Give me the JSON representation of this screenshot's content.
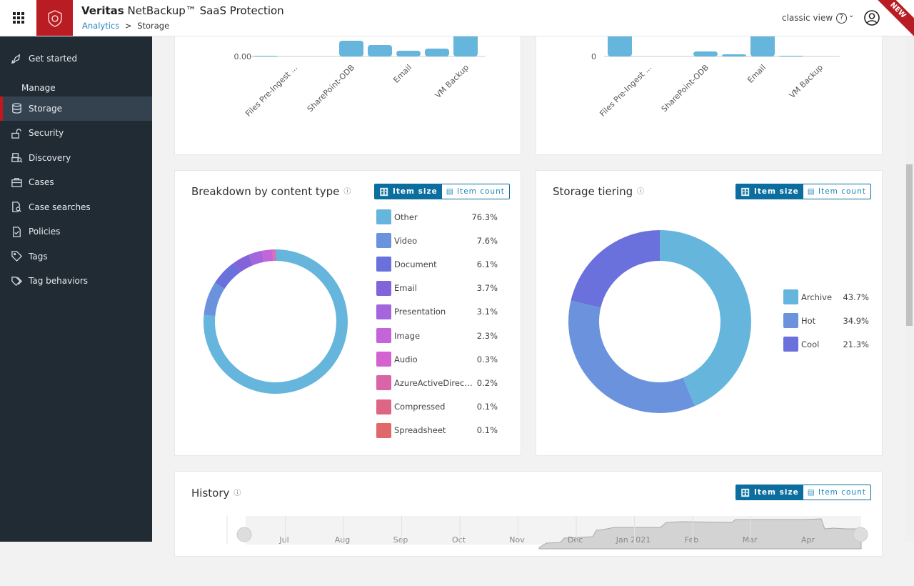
{
  "header": {
    "product_brand": "Veritas",
    "product_name": "NetBackup™ SaaS Protection",
    "breadcrumb": [
      "Analytics",
      "Storage"
    ],
    "classic_view": "classic view",
    "new_badge": "NEW",
    "icons": [
      "app-grid-icon",
      "shield-logo-icon",
      "help-icon",
      "chevron-down-icon",
      "user-icon"
    ]
  },
  "sidebar": {
    "top": {
      "label": "Get started",
      "icon": "rocket-icon"
    },
    "section": "Manage",
    "items": [
      {
        "label": "Storage",
        "icon": "database-icon",
        "active": true
      },
      {
        "label": "Security",
        "icon": "unlock-icon"
      },
      {
        "label": "Discovery",
        "icon": "discovery-icon"
      },
      {
        "label": "Cases",
        "icon": "briefcase-icon"
      },
      {
        "label": "Case searches",
        "icon": "file-search-icon"
      },
      {
        "label": "Policies",
        "icon": "file-check-icon"
      },
      {
        "label": "Tags",
        "icon": "tag-icon"
      },
      {
        "label": "Tag behaviors",
        "icon": "tags-icon"
      }
    ]
  },
  "toggle": {
    "size": "Item size",
    "count": "Item count"
  },
  "colors": {
    "accent": "#0b6e9e",
    "brand_red": "#b91c22",
    "bar": "#65b5dc"
  },
  "chart_data": [
    {
      "type": "bar",
      "ytick": "0.00",
      "categories": [
        "",
        "Files Pre-Ingest ...",
        "",
        "SharePoint-ODB",
        "",
        "Email",
        "",
        "VM Backup"
      ],
      "values": [
        0.3,
        0,
        0,
        22,
        16,
        8,
        11,
        40
      ]
    },
    {
      "type": "bar",
      "ytick": "0",
      "categories": [
        "",
        "Files Pre-Ingest ...",
        "",
        "SharePoint-ODB",
        "",
        "Email",
        "",
        "VM Backup"
      ],
      "values": [
        40,
        0,
        0,
        7,
        3,
        40,
        1,
        0
      ]
    },
    {
      "type": "pie",
      "title": "Breakdown by content type",
      "donut": true,
      "legend": "right",
      "labels": [
        "Other",
        "Video",
        "Document",
        "Email",
        "Presentation",
        "Image",
        "Audio",
        "AzureActiveDirec…",
        "Compressed",
        "Spreadsheet"
      ],
      "values": [
        76.3,
        7.6,
        6.1,
        3.7,
        3.1,
        2.3,
        0.3,
        0.2,
        0.1,
        0.1
      ],
      "display": [
        "76.3%",
        "7.6%",
        "6.1%",
        "3.7%",
        "3.1%",
        "2.3%",
        "0.3%",
        "0.2%",
        "0.1%",
        "0.1%"
      ],
      "colors": [
        "#65b5dc",
        "#6b93dd",
        "#6a70dc",
        "#8363d9",
        "#a366dc",
        "#c364d9",
        "#d462d0",
        "#d964a8",
        "#de6685",
        "#e06868"
      ]
    },
    {
      "type": "pie",
      "title": "Storage tiering",
      "donut": true,
      "legend": "right",
      "labels": [
        "Archive",
        "Hot",
        "Cool"
      ],
      "values": [
        43.7,
        34.9,
        21.3
      ],
      "display": [
        "43.7%",
        "34.9%",
        "21.3%"
      ],
      "colors": [
        "#65b5dc",
        "#6b93dd",
        "#6a70dc"
      ]
    },
    {
      "type": "area",
      "title": "History",
      "x_labels": [
        "Jul",
        "Aug",
        "Sep",
        "Oct",
        "Nov",
        "Dec",
        "Jan 2021",
        "Feb",
        "Mar",
        "Apr"
      ]
    }
  ]
}
